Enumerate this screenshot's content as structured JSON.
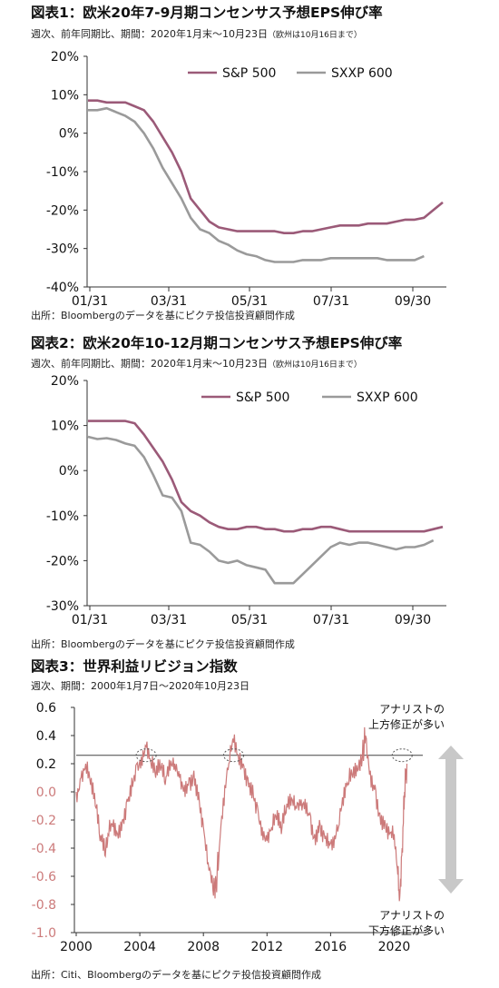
{
  "colors": {
    "sp500": "#9b5a78",
    "sxxp600": "#9a9a9a",
    "revision": "#cc7a7a",
    "axis_text": "#111111",
    "arrow": "#c8c8c8"
  },
  "panels": [
    {
      "title": "図表1：欧米20年7-9月期コンセンサス予想EPS伸び率",
      "subtitle": "週次、前年同期比、期間：2020年1月末～10月23日",
      "subtitle_note": "（欧州は10月16日まで）",
      "source": "出所：Bloombergのデータを基にピクテ投信投資顧問作成"
    },
    {
      "title": "図表2：欧米20年10-12月期コンセンサス予想EPS伸び率",
      "subtitle": "週次、前年同期比、期間：2020年1月末～10月23日",
      "subtitle_note": "（欧州は10月16日まで）",
      "source": "出所：Bloombergのデータを基にピクテ投信投資顧問作成"
    },
    {
      "title": "図表3：世界利益リビジョン指数",
      "subtitle": "週次、期間：2000年1月7日～2020年10月23日",
      "subtitle_note": "",
      "source": "出所：Citi、Bloombergのデータを基にピクテ投信投資顧問作成"
    }
  ],
  "chart_data": [
    {
      "type": "line",
      "title": "図表1：欧米20年7-9月期コンセンサス予想EPS伸び率",
      "x_tick_labels": [
        "01/31",
        "03/31",
        "05/31",
        "07/31",
        "09/30"
      ],
      "x_domain": [
        0,
        38
      ],
      "y_tick_labels": [
        "20%",
        "10%",
        "0%",
        "-10%",
        "-20%",
        "-30%",
        "-40%"
      ],
      "ylim": [
        -40,
        20
      ],
      "grid": false,
      "legend_position": "top-right",
      "series": [
        {
          "name": "S&P 500",
          "points": [
            [
              0,
              8.5
            ],
            [
              1,
              8.5
            ],
            [
              2,
              8
            ],
            [
              3,
              8
            ],
            [
              4,
              8
            ],
            [
              5,
              7
            ],
            [
              6,
              6
            ],
            [
              7,
              3
            ],
            [
              8,
              -1
            ],
            [
              9,
              -5
            ],
            [
              10,
              -10
            ],
            [
              11,
              -17
            ],
            [
              12,
              -20
            ],
            [
              13,
              -23
            ],
            [
              14,
              -24.5
            ],
            [
              15,
              -25
            ],
            [
              16,
              -25.5
            ],
            [
              17,
              -25.5
            ],
            [
              18,
              -25.5
            ],
            [
              19,
              -25.5
            ],
            [
              20,
              -25.5
            ],
            [
              21,
              -26
            ],
            [
              22,
              -26
            ],
            [
              23,
              -25.5
            ],
            [
              24,
              -25.5
            ],
            [
              25,
              -25
            ],
            [
              26,
              -24.5
            ],
            [
              27,
              -24
            ],
            [
              28,
              -24
            ],
            [
              29,
              -24
            ],
            [
              30,
              -23.5
            ],
            [
              31,
              -23.5
            ],
            [
              32,
              -23.5
            ],
            [
              33,
              -23
            ],
            [
              34,
              -22.5
            ],
            [
              35,
              -22.5
            ],
            [
              36,
              -22
            ],
            [
              37,
              -20
            ],
            [
              38,
              -18
            ]
          ]
        },
        {
          "name": "SXXP 600",
          "points": [
            [
              0,
              6
            ],
            [
              1,
              6
            ],
            [
              2,
              6.5
            ],
            [
              3,
              5.5
            ],
            [
              4,
              4.5
            ],
            [
              5,
              3
            ],
            [
              6,
              0
            ],
            [
              7,
              -4
            ],
            [
              8,
              -9
            ],
            [
              9,
              -13
            ],
            [
              10,
              -17
            ],
            [
              11,
              -22
            ],
            [
              12,
              -25
            ],
            [
              13,
              -26
            ],
            [
              14,
              -28
            ],
            [
              15,
              -29
            ],
            [
              16,
              -30.5
            ],
            [
              17,
              -31.5
            ],
            [
              18,
              -32
            ],
            [
              19,
              -33
            ],
            [
              20,
              -33.5
            ],
            [
              21,
              -33.5
            ],
            [
              22,
              -33.5
            ],
            [
              23,
              -33
            ],
            [
              24,
              -33
            ],
            [
              25,
              -33
            ],
            [
              26,
              -32.5
            ],
            [
              27,
              -32.5
            ],
            [
              28,
              -32.5
            ],
            [
              29,
              -32.5
            ],
            [
              30,
              -32.5
            ],
            [
              31,
              -32.5
            ],
            [
              32,
              -33
            ],
            [
              33,
              -33
            ],
            [
              34,
              -33
            ],
            [
              35,
              -33
            ],
            [
              36,
              -32
            ]
          ]
        }
      ]
    },
    {
      "type": "line",
      "title": "図表2：欧米20年10-12月期コンセンサス予想EPS伸び率",
      "x_tick_labels": [
        "01/31",
        "03/31",
        "05/31",
        "07/31",
        "09/30"
      ],
      "x_domain": [
        0,
        38
      ],
      "y_tick_labels": [
        "20%",
        "10%",
        "0%",
        "-10%",
        "-20%",
        "-30%"
      ],
      "ylim": [
        -30,
        20
      ],
      "grid": false,
      "legend_position": "top-right",
      "series": [
        {
          "name": "S&P 500",
          "points": [
            [
              0,
              11
            ],
            [
              1,
              11
            ],
            [
              2,
              11
            ],
            [
              3,
              11
            ],
            [
              4,
              11
            ],
            [
              5,
              10.5
            ],
            [
              6,
              8
            ],
            [
              7,
              5
            ],
            [
              8,
              2
            ],
            [
              9,
              -2
            ],
            [
              10,
              -7
            ],
            [
              11,
              -9
            ],
            [
              12,
              -10
            ],
            [
              13,
              -11.5
            ],
            [
              14,
              -12.5
            ],
            [
              15,
              -13
            ],
            [
              16,
              -13
            ],
            [
              17,
              -12.5
            ],
            [
              18,
              -12.5
            ],
            [
              19,
              -13
            ],
            [
              20,
              -13
            ],
            [
              21,
              -13.5
            ],
            [
              22,
              -13.5
            ],
            [
              23,
              -13
            ],
            [
              24,
              -13
            ],
            [
              25,
              -12.5
            ],
            [
              26,
              -12.5
            ],
            [
              27,
              -13
            ],
            [
              28,
              -13.5
            ],
            [
              29,
              -13.5
            ],
            [
              30,
              -13.5
            ],
            [
              31,
              -13.5
            ],
            [
              32,
              -13.5
            ],
            [
              33,
              -13.5
            ],
            [
              34,
              -13.5
            ],
            [
              35,
              -13.5
            ],
            [
              36,
              -13.5
            ],
            [
              37,
              -13
            ],
            [
              38,
              -12.5
            ]
          ]
        },
        {
          "name": "SXXP 600",
          "points": [
            [
              0,
              7.5
            ],
            [
              1,
              7
            ],
            [
              2,
              7.2
            ],
            [
              3,
              6.8
            ],
            [
              4,
              6
            ],
            [
              5,
              5.5
            ],
            [
              6,
              3
            ],
            [
              7,
              -1
            ],
            [
              8,
              -5.5
            ],
            [
              9,
              -6
            ],
            [
              10,
              -9
            ],
            [
              11,
              -16
            ],
            [
              12,
              -16.5
            ],
            [
              13,
              -18
            ],
            [
              14,
              -20
            ],
            [
              15,
              -20.5
            ],
            [
              16,
              -20
            ],
            [
              17,
              -21
            ],
            [
              18,
              -21.5
            ],
            [
              19,
              -22
            ],
            [
              20,
              -25
            ],
            [
              21,
              -25
            ],
            [
              22,
              -25
            ],
            [
              23,
              -23
            ],
            [
              24,
              -21
            ],
            [
              25,
              -19
            ],
            [
              26,
              -17
            ],
            [
              27,
              -16
            ],
            [
              28,
              -16.5
            ],
            [
              29,
              -16
            ],
            [
              30,
              -16
            ],
            [
              31,
              -16.5
            ],
            [
              32,
              -17
            ],
            [
              33,
              -17.5
            ],
            [
              34,
              -17
            ],
            [
              35,
              -17
            ],
            [
              36,
              -16.5
            ],
            [
              37,
              -15.5
            ]
          ]
        }
      ]
    },
    {
      "type": "line",
      "title": "図表3：世界利益リビジョン指数",
      "x_tick_labels": [
        "2000",
        "2004",
        "2008",
        "2012",
        "2016",
        "2020"
      ],
      "xlim": [
        2000,
        2021
      ],
      "y_tick_labels": [
        "0.6",
        "0.4",
        "0.2",
        "0.0",
        "-0.2",
        "-0.4",
        "-0.6",
        "-0.8",
        "-1.0"
      ],
      "ylim": [
        -1.0,
        0.6
      ],
      "grid": false,
      "reference_line_value": 0.26,
      "highlight_circles_at": [
        2004.4,
        2009.9,
        2020.5
      ],
      "annotations": {
        "top": [
          "アナリストの",
          "上方修正が多い"
        ],
        "bottom": [
          "アナリストの",
          "下方修正が多い"
        ]
      },
      "series": [
        {
          "name": "",
          "points": [
            [
              2000.0,
              0.0
            ],
            [
              2000.3,
              0.1
            ],
            [
              2000.6,
              0.2
            ],
            [
              2000.9,
              0.05
            ],
            [
              2001.2,
              -0.1
            ],
            [
              2001.5,
              -0.35
            ],
            [
              2001.8,
              -0.45
            ],
            [
              2002.0,
              -0.3
            ],
            [
              2002.3,
              -0.25
            ],
            [
              2002.6,
              -0.3
            ],
            [
              2002.9,
              -0.2
            ],
            [
              2003.2,
              -0.05
            ],
            [
              2003.5,
              0.1
            ],
            [
              2003.8,
              0.2
            ],
            [
              2004.1,
              0.25
            ],
            [
              2004.4,
              0.32
            ],
            [
              2004.7,
              0.2
            ],
            [
              2005.0,
              0.1
            ],
            [
              2005.3,
              0.15
            ],
            [
              2005.6,
              0.05
            ],
            [
              2005.9,
              0.15
            ],
            [
              2006.2,
              0.2
            ],
            [
              2006.5,
              0.1
            ],
            [
              2006.8,
              0.05
            ],
            [
              2007.1,
              0.1
            ],
            [
              2007.4,
              0.15
            ],
            [
              2007.7,
              0.0
            ],
            [
              2008.0,
              -0.25
            ],
            [
              2008.3,
              -0.5
            ],
            [
              2008.6,
              -0.7
            ],
            [
              2008.8,
              -0.65
            ],
            [
              2009.0,
              -0.4
            ],
            [
              2009.3,
              -0.1
            ],
            [
              2009.6,
              0.2
            ],
            [
              2009.9,
              0.35
            ],
            [
              2010.2,
              0.25
            ],
            [
              2010.5,
              0.2
            ],
            [
              2010.8,
              0.1
            ],
            [
              2011.1,
              0.05
            ],
            [
              2011.4,
              -0.1
            ],
            [
              2011.7,
              -0.25
            ],
            [
              2012.0,
              -0.35
            ],
            [
              2012.3,
              -0.25
            ],
            [
              2012.6,
              -0.2
            ],
            [
              2012.9,
              -0.3
            ],
            [
              2013.2,
              -0.15
            ],
            [
              2013.5,
              -0.1
            ],
            [
              2013.8,
              -0.1
            ],
            [
              2014.1,
              -0.1
            ],
            [
              2014.4,
              -0.05
            ],
            [
              2014.7,
              -0.15
            ],
            [
              2015.0,
              -0.3
            ],
            [
              2015.3,
              -0.2
            ],
            [
              2015.6,
              -0.3
            ],
            [
              2015.9,
              -0.35
            ],
            [
              2016.2,
              -0.4
            ],
            [
              2016.5,
              -0.25
            ],
            [
              2016.8,
              -0.1
            ],
            [
              2017.1,
              0.05
            ],
            [
              2017.4,
              0.1
            ],
            [
              2017.7,
              0.15
            ],
            [
              2018.0,
              0.25
            ],
            [
              2018.2,
              0.4
            ],
            [
              2018.5,
              0.15
            ],
            [
              2018.8,
              0.05
            ],
            [
              2019.1,
              -0.15
            ],
            [
              2019.4,
              -0.2
            ],
            [
              2019.7,
              -0.3
            ],
            [
              2020.0,
              -0.3
            ],
            [
              2020.2,
              -0.55
            ],
            [
              2020.35,
              -0.75
            ],
            [
              2020.5,
              -0.4
            ],
            [
              2020.65,
              0.0
            ],
            [
              2020.8,
              0.2
            ]
          ]
        }
      ]
    }
  ]
}
